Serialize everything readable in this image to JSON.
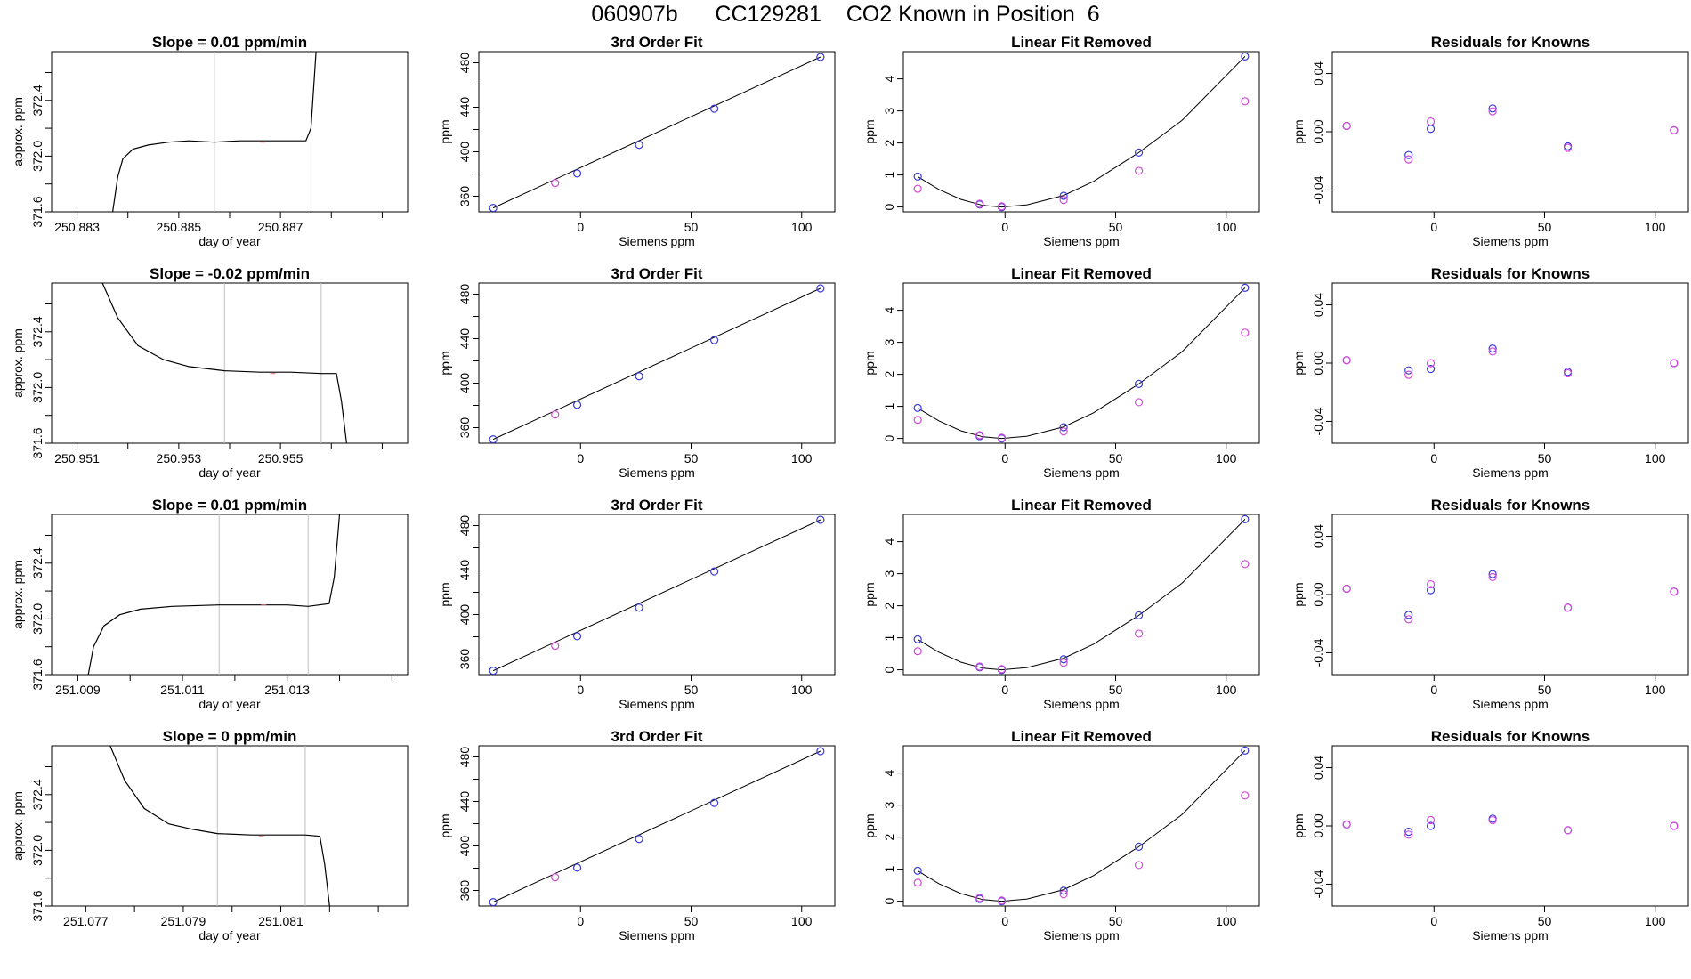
{
  "header": {
    "run_id": "060907b",
    "tank_id": "CC129281",
    "title_rest": "CO2 Known in Position  6"
  },
  "colors": {
    "fit_line": "#000000",
    "blue_points": "#3b3bd9",
    "magenta_points": "#d24ad8",
    "steelblue_point": "#4682b4",
    "red_marks": "#e07070",
    "grid_vlines": "#bebebe",
    "axis": "#000000"
  },
  "chart_data": [
    {
      "type": "line",
      "row": 1,
      "panel": "timeseries",
      "title": "Slope =  0.01  ppm/min",
      "xlabel": "day of year",
      "ylabel": "approx. ppm",
      "xticks": [
        "250.883",
        "250.885",
        "250.887"
      ],
      "yticks": [
        "371.6",
        "372.0",
        "372.4"
      ],
      "xlim": [
        250.8825,
        250.8895
      ],
      "ylim": [
        371.6,
        372.75
      ],
      "vlines": [
        250.8857,
        250.8876
      ],
      "series": [
        {
          "name": "trace",
          "x": [
            250.8837,
            250.8838,
            250.8839,
            250.8841,
            250.8844,
            250.8848,
            250.8852,
            250.8857,
            250.8862,
            250.8867,
            250.8872,
            250.8875,
            250.8876,
            250.8877
          ],
          "y": [
            371.6,
            371.85,
            371.98,
            372.05,
            372.08,
            372.1,
            372.11,
            372.1,
            372.11,
            372.11,
            372.11,
            372.11,
            372.2,
            372.75
          ]
        }
      ]
    },
    {
      "type": "scatter",
      "row": 1,
      "panel": "fit3",
      "title": "3rd Order Fit",
      "xlabel": "Siemens ppm",
      "ylabel": "ppm",
      "xticks": [
        "0",
        "50",
        "100"
      ],
      "yticks": [
        "360",
        "400",
        "440",
        "480"
      ],
      "xlim": [
        -46,
        115
      ],
      "ylim": [
        346,
        490
      ],
      "fit_x": [
        -39.5,
        108.5
      ],
      "fit_y": [
        349.5,
        485.2
      ],
      "series": [
        {
          "name": "blue",
          "x": [
            -39.5,
            -1.5,
            26.5,
            60.5,
            108.5
          ],
          "y": [
            349.5,
            380.5,
            406.2,
            438.7,
            485.2
          ]
        },
        {
          "name": "magenta",
          "x": [
            -11.5
          ],
          "y": [
            371.8
          ]
        }
      ]
    },
    {
      "type": "scatter",
      "row": 1,
      "panel": "linear_removed",
      "title": "Linear Fit Removed",
      "xlabel": "Siemens ppm",
      "ylabel": "ppm",
      "xticks": [
        "0",
        "50",
        "100"
      ],
      "yticks": [
        "0",
        "1",
        "2",
        "3",
        "4"
      ],
      "xlim": [
        -46,
        115
      ],
      "ylim": [
        -0.15,
        4.85
      ],
      "curve_x": [
        -39.5,
        -30,
        -20,
        -10,
        -1.5,
        10,
        26.5,
        40,
        60.5,
        80,
        108.5
      ],
      "curve_y": [
        0.95,
        0.55,
        0.24,
        0.05,
        0.0,
        0.07,
        0.36,
        0.8,
        1.7,
        2.7,
        4.7
      ],
      "series": [
        {
          "name": "blue",
          "x": [
            -39.5,
            -11.5,
            -1.5,
            26.5,
            60.5,
            108.5
          ],
          "y": [
            0.95,
            0.08,
            0.0,
            0.35,
            1.7,
            4.7
          ]
        },
        {
          "name": "magenta",
          "x": [
            -39.5,
            -11.5,
            -1.5,
            26.5,
            60.5,
            108.5
          ],
          "y": [
            0.57,
            0.1,
            0.02,
            0.22,
            1.13,
            3.3
          ]
        }
      ]
    },
    {
      "type": "scatter",
      "row": 1,
      "panel": "residuals",
      "title": "Residuals for Knowns",
      "xlabel": "Siemens ppm",
      "ylabel": "ppm",
      "xticks": [
        "0",
        "50",
        "100"
      ],
      "yticks": [
        "-0.04",
        "0.00",
        "0.04"
      ],
      "xlim": [
        -46,
        115
      ],
      "ylim": [
        -0.055,
        0.055
      ],
      "series": [
        {
          "name": "blue",
          "x": [
            -39.5,
            -11.5,
            -1.5,
            26.5,
            60.5,
            108.5
          ],
          "y": [
            0.004,
            -0.016,
            0.002,
            0.016,
            -0.01,
            0.001
          ]
        },
        {
          "name": "magenta",
          "x": [
            -39.5,
            -11.5,
            -1.5,
            26.5,
            60.5,
            108.5
          ],
          "y": [
            0.004,
            -0.019,
            0.007,
            0.014,
            -0.011,
            0.001
          ]
        }
      ]
    },
    {
      "type": "line",
      "row": 2,
      "panel": "timeseries",
      "title": "Slope =  -0.02  ppm/min",
      "xlabel": "day of year",
      "ylabel": "approx. ppm",
      "xticks": [
        "250.951",
        "250.953",
        "250.955"
      ],
      "yticks": [
        "371.6",
        "372.0",
        "372.4"
      ],
      "xlim": [
        250.9505,
        250.9575
      ],
      "ylim": [
        371.6,
        372.75
      ],
      "vlines": [
        250.9539,
        250.9558
      ],
      "series": [
        {
          "name": "trace",
          "x": [
            250.9515,
            250.9518,
            250.9522,
            250.9527,
            250.9532,
            250.9539,
            250.9546,
            250.9552,
            250.9558,
            250.9561,
            250.9562,
            250.9563
          ],
          "y": [
            372.75,
            372.5,
            372.3,
            372.2,
            372.15,
            372.12,
            372.11,
            372.11,
            372.1,
            372.1,
            371.9,
            371.6
          ]
        }
      ]
    },
    {
      "type": "scatter",
      "row": 2,
      "panel": "fit3",
      "title": "3rd Order Fit",
      "xlabel": "Siemens ppm",
      "ylabel": "ppm",
      "xticks": [
        "0",
        "50",
        "100"
      ],
      "yticks": [
        "360",
        "400",
        "440",
        "480"
      ],
      "xlim": [
        -46,
        115
      ],
      "ylim": [
        346,
        490
      ],
      "fit_x": [
        -39.5,
        108.5
      ],
      "fit_y": [
        349.5,
        485.2
      ],
      "series": [
        {
          "name": "blue",
          "x": [
            -39.5,
            -1.5,
            26.5,
            60.5,
            108.5
          ],
          "y": [
            349.5,
            380.5,
            406.2,
            438.7,
            485.2
          ]
        },
        {
          "name": "magenta",
          "x": [
            -11.5
          ],
          "y": [
            371.8
          ]
        }
      ]
    },
    {
      "type": "scatter",
      "row": 2,
      "panel": "linear_removed",
      "title": "Linear Fit Removed",
      "xlabel": "Siemens ppm",
      "ylabel": "ppm",
      "xticks": [
        "0",
        "50",
        "100"
      ],
      "yticks": [
        "0",
        "1",
        "2",
        "3",
        "4"
      ],
      "xlim": [
        -46,
        115
      ],
      "ylim": [
        -0.15,
        4.85
      ],
      "curve_x": [
        -39.5,
        -30,
        -20,
        -10,
        -1.5,
        10,
        26.5,
        40,
        60.5,
        80,
        108.5
      ],
      "curve_y": [
        0.95,
        0.55,
        0.24,
        0.05,
        0.0,
        0.07,
        0.36,
        0.8,
        1.7,
        2.7,
        4.7
      ],
      "series": [
        {
          "name": "blue",
          "x": [
            -39.5,
            -11.5,
            -1.5,
            26.5,
            60.5,
            108.5
          ],
          "y": [
            0.95,
            0.07,
            0.0,
            0.35,
            1.7,
            4.7
          ]
        },
        {
          "name": "magenta",
          "x": [
            -39.5,
            -11.5,
            -1.5,
            26.5,
            60.5,
            108.5
          ],
          "y": [
            0.58,
            0.1,
            0.02,
            0.22,
            1.13,
            3.3
          ]
        }
      ]
    },
    {
      "type": "scatter",
      "row": 2,
      "panel": "residuals",
      "title": "Residuals for Knowns",
      "xlabel": "Siemens ppm",
      "ylabel": "ppm",
      "xticks": [
        "0",
        "50",
        "100"
      ],
      "yticks": [
        "-0.04",
        "0.00",
        "0.04"
      ],
      "xlim": [
        -46,
        115
      ],
      "ylim": [
        -0.055,
        0.055
      ],
      "series": [
        {
          "name": "blue",
          "x": [
            -39.5,
            -11.5,
            -1.5,
            26.5,
            60.5,
            108.5
          ],
          "y": [
            0.002,
            -0.005,
            -0.004,
            0.01,
            -0.006,
            0.0
          ]
        },
        {
          "name": "magenta",
          "x": [
            -39.5,
            -11.5,
            -1.5,
            26.5,
            60.5,
            108.5
          ],
          "y": [
            0.002,
            -0.008,
            0.0,
            0.008,
            -0.007,
            0.0
          ]
        }
      ]
    },
    {
      "type": "line",
      "row": 3,
      "panel": "timeseries",
      "title": "Slope =  0.01  ppm/min",
      "xlabel": "day of year",
      "ylabel": "approx. ppm",
      "xticks": [
        "251.009",
        "251.011",
        "251.013"
      ],
      "yticks": [
        "371.6",
        "372.0",
        "372.4"
      ],
      "xlim": [
        251.0085,
        251.0153
      ],
      "ylim": [
        371.6,
        372.75
      ],
      "vlines": [
        251.0117,
        251.0134
      ],
      "series": [
        {
          "name": "trace",
          "x": [
            251.0092,
            251.0093,
            251.0095,
            251.0098,
            251.0102,
            251.0108,
            251.0117,
            251.0124,
            251.013,
            251.0134,
            251.0138,
            251.0139,
            251.014
          ],
          "y": [
            371.6,
            371.8,
            371.95,
            372.03,
            372.07,
            372.09,
            372.1,
            372.1,
            372.1,
            372.09,
            372.11,
            372.3,
            372.75
          ]
        }
      ]
    },
    {
      "type": "scatter",
      "row": 3,
      "panel": "fit3",
      "title": "3rd Order Fit",
      "xlabel": "Siemens ppm",
      "ylabel": "ppm",
      "xticks": [
        "0",
        "50",
        "100"
      ],
      "yticks": [
        "360",
        "400",
        "440",
        "480"
      ],
      "xlim": [
        -46,
        115
      ],
      "ylim": [
        346,
        490
      ],
      "fit_x": [
        -39.5,
        108.5
      ],
      "fit_y": [
        349.5,
        485.2
      ],
      "series": [
        {
          "name": "blue",
          "x": [
            -39.5,
            -1.5,
            26.5,
            60.5,
            108.5
          ],
          "y": [
            349.5,
            380.5,
            406.2,
            438.7,
            485.2
          ]
        },
        {
          "name": "magenta",
          "x": [
            -11.5
          ],
          "y": [
            371.8
          ]
        }
      ]
    },
    {
      "type": "scatter",
      "row": 3,
      "panel": "linear_removed",
      "title": "Linear Fit Removed",
      "xlabel": "Siemens ppm",
      "ylabel": "ppm",
      "xticks": [
        "0",
        "50",
        "100"
      ],
      "yticks": [
        "0",
        "1",
        "2",
        "3",
        "4"
      ],
      "xlim": [
        -46,
        115
      ],
      "ylim": [
        -0.15,
        4.85
      ],
      "curve_x": [
        -39.5,
        -30,
        -20,
        -10,
        -1.5,
        10,
        26.5,
        40,
        60.5,
        80,
        108.5
      ],
      "curve_y": [
        0.95,
        0.55,
        0.24,
        0.05,
        0.0,
        0.07,
        0.36,
        0.8,
        1.7,
        2.7,
        4.7
      ],
      "series": [
        {
          "name": "blue",
          "x": [
            -39.5,
            -11.5,
            -1.5,
            26.5,
            60.5,
            108.5
          ],
          "y": [
            0.95,
            0.08,
            0.0,
            0.33,
            1.7,
            4.7
          ]
        },
        {
          "name": "magenta",
          "x": [
            -39.5,
            -11.5,
            -1.5,
            26.5,
            60.5,
            108.5
          ],
          "y": [
            0.58,
            0.1,
            0.02,
            0.22,
            1.13,
            3.3
          ]
        }
      ]
    },
    {
      "type": "scatter",
      "row": 3,
      "panel": "residuals",
      "title": "Residuals for Knowns",
      "xlabel": "Siemens ppm",
      "ylabel": "ppm",
      "xticks": [
        "0",
        "50",
        "100"
      ],
      "yticks": [
        "-0.04",
        "0.00",
        "0.04"
      ],
      "xlim": [
        -46,
        115
      ],
      "ylim": [
        -0.055,
        0.055
      ],
      "series": [
        {
          "name": "blue",
          "x": [
            -39.5,
            -11.5,
            -1.5,
            26.5,
            60.5,
            108.5
          ],
          "y": [
            0.004,
            -0.014,
            0.003,
            0.014,
            -0.009,
            0.002
          ]
        },
        {
          "name": "magenta",
          "x": [
            -39.5,
            -11.5,
            -1.5,
            26.5,
            60.5,
            108.5
          ],
          "y": [
            0.004,
            -0.017,
            0.007,
            0.012,
            -0.009,
            0.002
          ]
        }
      ]
    },
    {
      "type": "line",
      "row": 4,
      "panel": "timeseries",
      "title": "Slope =  0  ppm/min",
      "xlabel": "day of year",
      "ylabel": "approx. ppm",
      "xticks": [
        "251.077",
        "251.079",
        "251.081"
      ],
      "yticks": [
        "371.6",
        "372.0",
        "372.4"
      ],
      "xlim": [
        251.0763,
        251.0836
      ],
      "ylim": [
        371.6,
        372.75
      ],
      "vlines": [
        251.0797,
        251.0815
      ],
      "series": [
        {
          "name": "trace",
          "x": [
            251.0775,
            251.0778,
            251.0782,
            251.0787,
            251.0792,
            251.0797,
            251.0804,
            251.081,
            251.0815,
            251.0818,
            251.0819,
            251.082
          ],
          "y": [
            372.75,
            372.5,
            372.3,
            372.19,
            372.15,
            372.12,
            372.11,
            372.11,
            372.11,
            372.1,
            371.9,
            371.6
          ]
        }
      ]
    },
    {
      "type": "scatter",
      "row": 4,
      "panel": "fit3",
      "title": "3rd Order Fit",
      "xlabel": "Siemens ppm",
      "ylabel": "ppm",
      "xticks": [
        "0",
        "50",
        "100"
      ],
      "yticks": [
        "360",
        "400",
        "440",
        "480"
      ],
      "xlim": [
        -46,
        115
      ],
      "ylim": [
        346,
        490
      ],
      "fit_x": [
        -39.5,
        108.5
      ],
      "fit_y": [
        349.5,
        485.2
      ],
      "series": [
        {
          "name": "blue",
          "x": [
            -39.5,
            -1.5,
            26.5,
            60.5,
            108.5
          ],
          "y": [
            349.5,
            380.5,
            406.2,
            438.7,
            485.2
          ]
        },
        {
          "name": "magenta",
          "x": [
            -11.5
          ],
          "y": [
            371.8
          ]
        }
      ]
    },
    {
      "type": "scatter",
      "row": 4,
      "panel": "linear_removed",
      "title": "Linear Fit Removed",
      "xlabel": "Siemens ppm",
      "ylabel": "ppm",
      "xticks": [
        "0",
        "50",
        "100"
      ],
      "yticks": [
        "0",
        "1",
        "2",
        "3",
        "4"
      ],
      "xlim": [
        -46,
        115
      ],
      "ylim": [
        -0.15,
        4.85
      ],
      "curve_x": [
        -39.5,
        -30,
        -20,
        -10,
        -1.5,
        10,
        26.5,
        40,
        60.5,
        80,
        108.5
      ],
      "curve_y": [
        0.95,
        0.55,
        0.24,
        0.05,
        0.0,
        0.07,
        0.36,
        0.8,
        1.7,
        2.7,
        4.7
      ],
      "series": [
        {
          "name": "blue",
          "x": [
            -39.5,
            -11.5,
            -1.5,
            26.5,
            60.5,
            108.5
          ],
          "y": [
            0.95,
            0.07,
            0.0,
            0.33,
            1.7,
            4.7
          ]
        },
        {
          "name": "magenta",
          "x": [
            -39.5,
            -11.5,
            -1.5,
            26.5,
            60.5,
            108.5
          ],
          "y": [
            0.58,
            0.1,
            0.02,
            0.22,
            1.13,
            3.3
          ]
        }
      ]
    },
    {
      "type": "scatter",
      "row": 4,
      "panel": "residuals",
      "title": "Residuals for Knowns",
      "xlabel": "Siemens ppm",
      "ylabel": "ppm",
      "xticks": [
        "0",
        "50",
        "100"
      ],
      "yticks": [
        "-0.04",
        "0.00",
        "0.04"
      ],
      "xlim": [
        -46,
        115
      ],
      "ylim": [
        -0.055,
        0.055
      ],
      "series": [
        {
          "name": "blue",
          "x": [
            -39.5,
            -11.5,
            -1.5,
            26.5,
            60.5,
            108.5
          ],
          "y": [
            0.001,
            -0.004,
            0.0,
            0.005,
            -0.003,
            0.0
          ]
        },
        {
          "name": "magenta",
          "x": [
            -39.5,
            -11.5,
            -1.5,
            26.5,
            60.5,
            108.5
          ],
          "y": [
            0.001,
            -0.006,
            0.004,
            0.004,
            -0.003,
            0.0
          ]
        }
      ]
    }
  ]
}
